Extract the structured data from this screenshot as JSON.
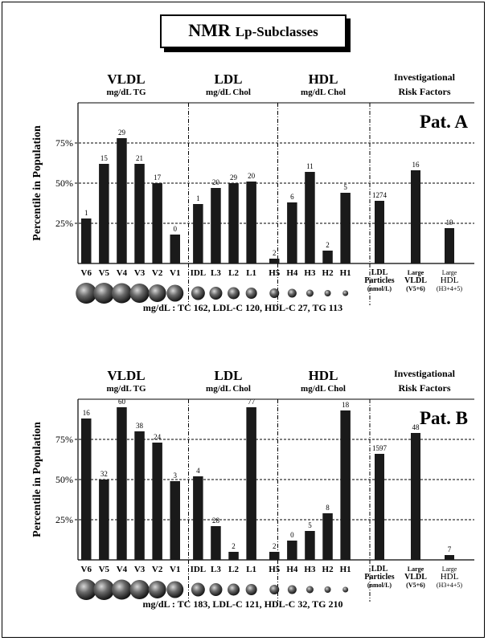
{
  "title": {
    "main": "NMR",
    "sub": "Lp-Subclasses"
  },
  "chart_data": [
    {
      "type": "bar",
      "panel_label": "Pat. A",
      "ylabel": "Percentile in Population",
      "yticks": [
        "75%",
        "50%",
        "25%"
      ],
      "ylim": [
        0,
        100
      ],
      "groups": [
        {
          "name": "VLDL",
          "unit": "mg/dL TG"
        },
        {
          "name": "LDL",
          "unit": "mg/dL Chol"
        },
        {
          "name": "HDL",
          "unit": "mg/dL Chol"
        },
        {
          "name": "Investigational",
          "unit": "Risk Factors"
        }
      ],
      "categories": [
        "V6",
        "V5",
        "V4",
        "V3",
        "V2",
        "V1",
        "IDL",
        "L3",
        "L2",
        "L1",
        "H5",
        "H4",
        "H3",
        "H2",
        "H1"
      ],
      "values": [
        28,
        62,
        78,
        62,
        50,
        18,
        37,
        47,
        50,
        51,
        3,
        38,
        57,
        8,
        44
      ],
      "labels": [
        "1",
        "15",
        "29",
        "21",
        "17",
        "0",
        "1",
        "20",
        "29",
        "20",
        "2",
        "6",
        "11",
        "2",
        "5"
      ],
      "risk": [
        {
          "lines": [
            "LDL",
            "Particles",
            "(nmol/L)"
          ],
          "value": 39,
          "label": "1274"
        },
        {
          "lines": [
            "Large",
            "VLDL",
            "(V5+6)"
          ],
          "value": 58,
          "label": "16"
        },
        {
          "lines": [
            "Large",
            "HDL",
            "(H3+4+5)"
          ],
          "value": 22,
          "label": "19"
        }
      ],
      "summary": "mg/dL : TC  162, LDL-C  120, HDL-C 27, TG  113"
    },
    {
      "type": "bar",
      "panel_label": "Pat. B",
      "ylabel": "Percentile in Population",
      "yticks": [
        "75%",
        "50%",
        "25%"
      ],
      "ylim": [
        0,
        100
      ],
      "groups": [
        {
          "name": "VLDL",
          "unit": "mg/dL TG"
        },
        {
          "name": "LDL",
          "unit": "mg/dL Chol"
        },
        {
          "name": "HDL",
          "unit": "mg/dL Chol"
        },
        {
          "name": "Investigational",
          "unit": "Risk Factors"
        }
      ],
      "categories": [
        "V6",
        "V5",
        "V4",
        "V3",
        "V2",
        "V1",
        "IDL",
        "L3",
        "L2",
        "L1",
        "H5",
        "H4",
        "H3",
        "H2",
        "H1"
      ],
      "values": [
        88,
        50,
        95,
        80,
        73,
        49,
        52,
        21,
        5,
        95,
        5,
        12,
        18,
        29,
        93
      ],
      "labels": [
        "16",
        "32",
        "60",
        "38",
        "24",
        "3",
        "4",
        "28",
        "2",
        "77",
        "2",
        "0",
        "5",
        "8",
        "18"
      ],
      "risk": [
        {
          "lines": [
            "LDL",
            "Particles",
            "(nmol/L)"
          ],
          "value": 66,
          "label": "1597"
        },
        {
          "lines": [
            "Large",
            "VLDL",
            "(V5+6)"
          ],
          "value": 79,
          "label": "48"
        },
        {
          "lines": [
            "Large",
            "HDL",
            "(H3+4+5)"
          ],
          "value": 3,
          "label": "7"
        }
      ],
      "summary": "mg/dL : TC  183, LDL-C  121, HDL-C 32, TG  210"
    }
  ]
}
